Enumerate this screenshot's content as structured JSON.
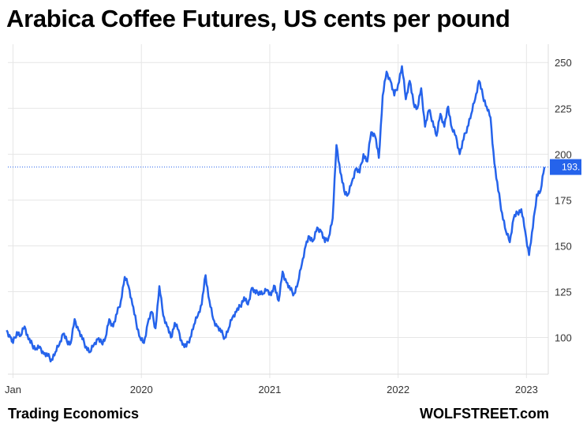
{
  "header": {
    "title": "Arabica Coffee Futures, US cents per pound"
  },
  "footer": {
    "left": "Trading Economics",
    "right": "WOLFSTREET.com"
  },
  "chart_data": {
    "type": "line",
    "title": "Arabica Coffee Futures, US cents per pound",
    "xlabel": "",
    "ylabel": "",
    "ylim": [
      80,
      260
    ],
    "yticks": [
      100,
      125,
      150,
      175,
      200,
      225,
      250
    ],
    "xticks": [
      {
        "label": "Jan",
        "x": 2019.0
      },
      {
        "label": "2020",
        "x": 2020.0
      },
      {
        "label": "2021",
        "x": 2021.0
      },
      {
        "label": "2022",
        "x": 2022.0
      },
      {
        "label": "2023",
        "x": 2023.0
      }
    ],
    "last_value_label": "193.",
    "last_value": 193,
    "line_color": "#2563eb",
    "grid": true,
    "series": [
      {
        "x": [
          2018.95,
          2018.98,
          2019.0,
          2019.03,
          2019.06,
          2019.09,
          2019.12,
          2019.15,
          2019.18,
          2019.21,
          2019.24,
          2019.27,
          2019.3,
          2019.33,
          2019.36,
          2019.39,
          2019.42,
          2019.45,
          2019.48,
          2019.51,
          2019.54,
          2019.57,
          2019.6,
          2019.63,
          2019.66,
          2019.69,
          2019.72,
          2019.75,
          2019.78,
          2019.81,
          2019.84,
          2019.87,
          2019.9,
          2019.93,
          2019.96,
          2019.99,
          2020.02,
          2020.05,
          2020.08,
          2020.11,
          2020.14,
          2020.17,
          2020.2,
          2020.23,
          2020.26,
          2020.29,
          2020.32,
          2020.35,
          2020.38,
          2020.41,
          2020.44,
          2020.47,
          2020.5,
          2020.53,
          2020.56,
          2020.59,
          2020.62,
          2020.65,
          2020.68,
          2020.71,
          2020.74,
          2020.77,
          2020.8,
          2020.83,
          2020.86,
          2020.89,
          2020.92,
          2020.95,
          2020.98,
          2021.01,
          2021.04,
          2021.07,
          2021.1,
          2021.13,
          2021.16,
          2021.19,
          2021.22,
          2021.25,
          2021.28,
          2021.31,
          2021.34,
          2021.37,
          2021.4,
          2021.43,
          2021.46,
          2021.49,
          2021.52,
          2021.55,
          2021.58,
          2021.61,
          2021.64,
          2021.67,
          2021.7,
          2021.73,
          2021.76,
          2021.79,
          2021.82,
          2021.85,
          2021.88,
          2021.91,
          2021.94,
          2021.97,
          2022.0,
          2022.03,
          2022.06,
          2022.09,
          2022.12,
          2022.15,
          2022.18,
          2022.21,
          2022.24,
          2022.27,
          2022.3,
          2022.33,
          2022.36,
          2022.39,
          2022.42,
          2022.45,
          2022.48,
          2022.51,
          2022.54,
          2022.57,
          2022.6,
          2022.63,
          2022.66,
          2022.69,
          2022.72,
          2022.75,
          2022.78,
          2022.81,
          2022.84,
          2022.87,
          2022.9,
          2022.93,
          2022.96,
          2022.99,
          2023.02,
          2023.05,
          2023.08,
          2023.11,
          2023.14
        ],
        "y": [
          104,
          100,
          97,
          103,
          101,
          106,
          99,
          96,
          94,
          95,
          91,
          90,
          88,
          92,
          96,
          102,
          98,
          97,
          110,
          104,
          99,
          95,
          92,
          96,
          99,
          97,
          100,
          110,
          106,
          113,
          120,
          133,
          128,
          118,
          108,
          100,
          97,
          108,
          114,
          105,
          128,
          112,
          106,
          100,
          108,
          104,
          96,
          95,
          100,
          107,
          112,
          118,
          134,
          120,
          110,
          106,
          103,
          100,
          105,
          111,
          114,
          117,
          122,
          118,
          127,
          124,
          125,
          124,
          126,
          123,
          128,
          120,
          136,
          130,
          126,
          124,
          130,
          140,
          150,
          155,
          153,
          160,
          158,
          152,
          155,
          165,
          205,
          190,
          180,
          178,
          185,
          192,
          190,
          200,
          196,
          212,
          210,
          198,
          232,
          245,
          240,
          232,
          238,
          248,
          230,
          240,
          228,
          225,
          236,
          215,
          224,
          218,
          210,
          222,
          215,
          226,
          214,
          210,
          200,
          208,
          215,
          222,
          230,
          240,
          232,
          226,
          220,
          195,
          180,
          168,
          158,
          152,
          165,
          168,
          170,
          158,
          145,
          160,
          178,
          180,
          193
        ]
      }
    ]
  }
}
